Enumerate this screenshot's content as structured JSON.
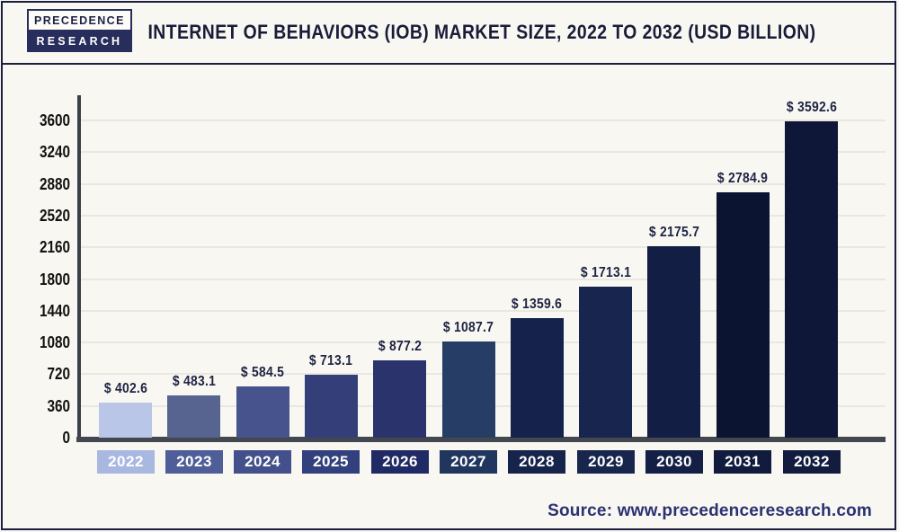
{
  "header": {
    "logo": {
      "line1": "PRECEDENCE",
      "line2": "RESEARCH"
    },
    "title": "INTERNET OF BEHAVIORS (IOB) MARKET SIZE, 2022 TO 2032 (USD BILLION)"
  },
  "footer": {
    "source": "Source: www.precedenceresearch.com"
  },
  "colors": {
    "page_bg": "#f8f7f2",
    "frame_border": "#1b1f3e",
    "title_text": "#181c38",
    "gridline": "#e9e7e1",
    "y_axis_line": "#3c404b",
    "baseline": "#43474f",
    "tick_label": "#121212",
    "value_label": "#1d2342",
    "year_label_text": "#ffffff",
    "footer_text": "#2b3173",
    "logo_navy": "#272e5c"
  },
  "chart_data": {
    "type": "bar",
    "title": "INTERNET OF BEHAVIORS (IOB) MARKET SIZE, 2022 TO 2032 (USD BILLION)",
    "unit": "USD Billion",
    "categories": [
      "2022",
      "2023",
      "2024",
      "2025",
      "2026",
      "2027",
      "2028",
      "2029",
      "2030",
      "2031",
      "2032"
    ],
    "values": [
      402.6,
      483.1,
      584.5,
      713.1,
      877.2,
      1087.7,
      1359.6,
      1713.1,
      2175.7,
      2784.9,
      3592.6
    ],
    "value_labels": [
      "$ 402.6",
      "$ 483.1",
      "$ 584.5",
      "$ 713.1",
      "$ 877.2",
      "$ 1087.7",
      "$ 1359.6",
      "$ 1713.1",
      "$ 2175.7",
      "$ 2784.9",
      "$ 3592.6"
    ],
    "xlabel": "",
    "ylabel": "",
    "ylim": [
      0,
      3600
    ],
    "yticks": [
      0,
      360,
      720,
      1080,
      1440,
      1800,
      2160,
      2520,
      2880,
      3240,
      3600
    ],
    "grid": true,
    "legend": "none",
    "bar_colors": [
      "#bac6e8",
      "#56648f",
      "#47538c",
      "#343f79",
      "#2a336c",
      "#263e66",
      "#14224c",
      "#18264f",
      "#131e44",
      "#0b1431",
      "#0e1737"
    ],
    "category_box_colors": [
      "#a9b8e0",
      "#4f5e99",
      "#43508c",
      "#32417e",
      "#202a64",
      "#21365e",
      "#16234b",
      "#18264e",
      "#141f45",
      "#111b3d",
      "#121c3f"
    ]
  }
}
